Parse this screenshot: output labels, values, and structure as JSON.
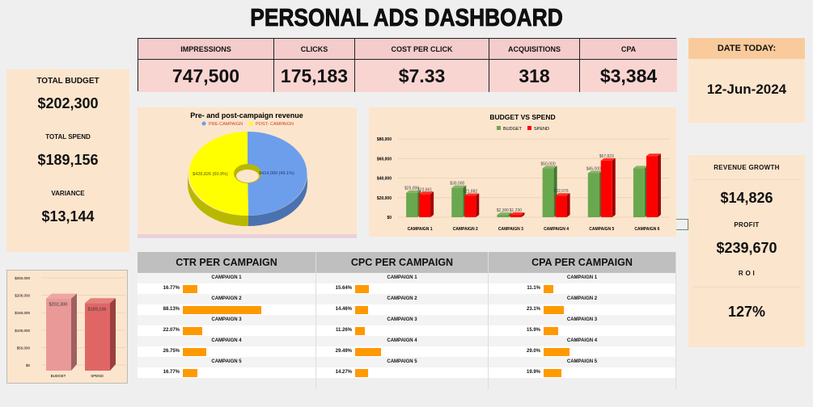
{
  "title": "PERSONAL ADS DASHBOARD",
  "kpis": [
    {
      "label": "IMPRESSIONS",
      "value": "747,500"
    },
    {
      "label": "CLICKS",
      "value": "175,183"
    },
    {
      "label": "COST PER CLICK",
      "value": "$7.33"
    },
    {
      "label": "ACQUISITIONS",
      "value": "318"
    },
    {
      "label": "CPA",
      "value": "$3,384"
    }
  ],
  "date": {
    "label": "DATE TODAY:",
    "value": "12-Jun-2024"
  },
  "budget_panel": {
    "total_budget_label": "TOTAL BUDGET",
    "total_budget": "$202,300",
    "total_spend_label": "TOTAL SPEND",
    "total_spend": "$189,156",
    "variance_label": "VARIANCE",
    "variance": "$13,144"
  },
  "right_panel": {
    "revenue_growth_label": "REVENUE GROWTH",
    "revenue_growth": "$14,826",
    "profit_label": "PROFIT",
    "profit": "$239,670",
    "roi_label": "R O I",
    "roi": "127%"
  },
  "chart_data": [
    {
      "type": "pie",
      "title": "Pre- and post-campaign revenue",
      "legend": [
        "PRE-CAMPAIGN",
        "POST- CAMPAIGN"
      ],
      "values": [
        414000,
        428826
      ],
      "labels": [
        "$414,000 (49.1%)",
        "$428,826 (50.9%)"
      ],
      "colors": [
        "#6d9eeb",
        "#ffff00"
      ]
    },
    {
      "type": "bar",
      "title": "BUDGET VS SPEND",
      "categories": [
        "CAMPAIGN 1",
        "CAMPAIGN 2",
        "CAMPAIGN 3",
        "CAMPAIGN 4",
        "CAMPAIGN 5",
        "CAMPAIGN 6"
      ],
      "series": [
        {
          "name": "BUDGET",
          "color": "#6aa84f",
          "values": [
            25000,
            30000,
            2300,
            50000,
            45000,
            50000
          ],
          "labels": [
            "$25,000",
            "$30,000",
            "$2,300",
            "$50,000",
            "$45,000",
            ""
          ]
        },
        {
          "name": "SPEND",
          "color": "#ff0000",
          "values": [
            23661,
            21882,
            1230,
            22076,
            57823,
            62484
          ],
          "labels": [
            "$23,661",
            "$21,882",
            "$1,230",
            "$22,076",
            "$57,823",
            ""
          ]
        }
      ],
      "yticks": [
        "$0",
        "$20,000",
        "$40,000",
        "$60,000",
        "$80,000"
      ],
      "ylim": [
        0,
        80000
      ]
    },
    {
      "type": "bar",
      "categories": [
        "BUDGET",
        "SPEND"
      ],
      "values": [
        202300,
        189156
      ],
      "labels": [
        "$202,300",
        "$189,156"
      ],
      "colors": [
        "#ea9999",
        "#e06666"
      ],
      "yticks": [
        "$0",
        "$50,000",
        "$100,000",
        "$150,000",
        "$200,000",
        "$250,000"
      ],
      "ylim": [
        0,
        250000
      ]
    }
  ],
  "tables": [
    {
      "title": "CTR PER CAMPAIGN",
      "rows": [
        {
          "label": "CAMPAIGN 1",
          "text": "16.77%",
          "value": 16.77
        },
        {
          "label": "CAMPAIGN 2",
          "text": "88.13%",
          "value": 88.13
        },
        {
          "label": "CAMPAIGN 3",
          "text": "22.07%",
          "value": 22.07
        },
        {
          "label": "CAMPAIGN 4",
          "text": "26.75%",
          "value": 26.75
        },
        {
          "label": "CAMPAIGN 5",
          "text": "16.77%",
          "value": 16.77
        }
      ]
    },
    {
      "title": "CPC PER CAMPAIGN",
      "rows": [
        {
          "label": "CAMPAIGN 1",
          "text": "15.64%",
          "value": 15.64
        },
        {
          "label": "CAMPAIGN 2",
          "text": "14.46%",
          "value": 14.46
        },
        {
          "label": "CAMPAIGN 3",
          "text": "11.26%",
          "value": 11.26
        },
        {
          "label": "CAMPAIGN 4",
          "text": "29.49%",
          "value": 29.49
        },
        {
          "label": "CAMPAIGN 5",
          "text": "14.27%",
          "value": 14.27
        }
      ]
    },
    {
      "title": "CPA PER CAMPAIGN",
      "rows": [
        {
          "label": "CAMPAIGN 1",
          "text": "11.1%",
          "value": 11.1
        },
        {
          "label": "CAMPAIGN 2",
          "text": "23.1%",
          "value": 23.1
        },
        {
          "label": "CAMPAIGN 3",
          "text": "15.9%",
          "value": 15.9
        },
        {
          "label": "CAMPAIGN 4",
          "text": "29.0%",
          "value": 29.0
        },
        {
          "label": "CAMPAIGN 5",
          "text": "19.9%",
          "value": 19.9
        }
      ]
    }
  ]
}
